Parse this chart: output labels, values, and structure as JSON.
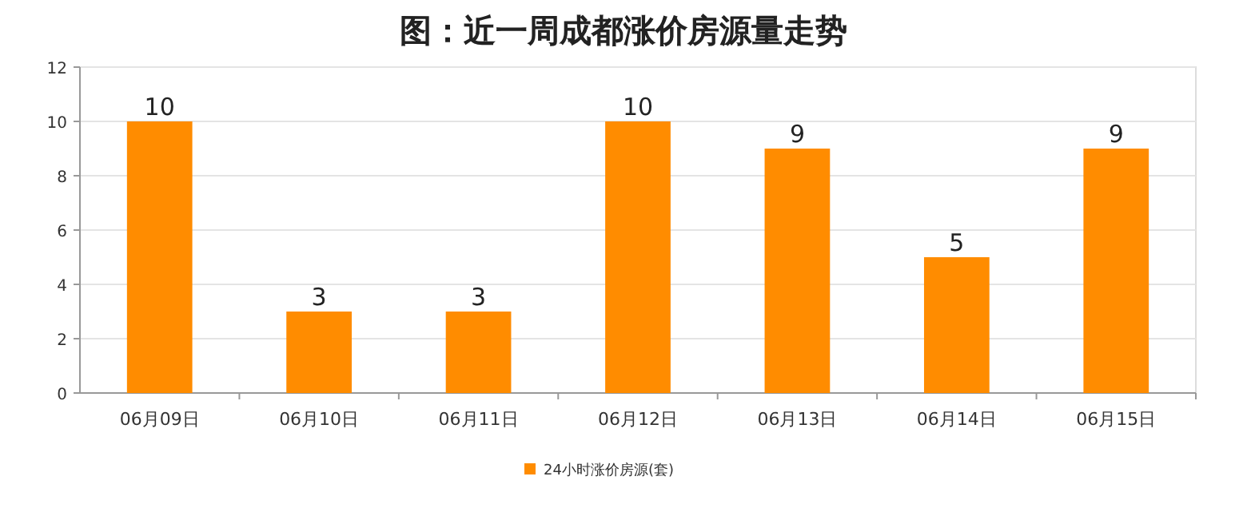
{
  "chart_data": {
    "type": "bar",
    "title": "图：近一周成都涨价房源量走势",
    "categories": [
      "06月09日",
      "06月10日",
      "06月11日",
      "06月12日",
      "06月13日",
      "06月14日",
      "06月15日"
    ],
    "series": [
      {
        "name": "24小时涨价房源(套)",
        "color": "#ff8c00",
        "values": [
          10,
          3,
          3,
          10,
          9,
          5,
          9
        ]
      }
    ],
    "ylim": [
      0,
      12
    ],
    "yticks": [
      0,
      2,
      4,
      6,
      8,
      10,
      12
    ],
    "grid": "y",
    "data_labels": true,
    "legend": "bottom"
  }
}
